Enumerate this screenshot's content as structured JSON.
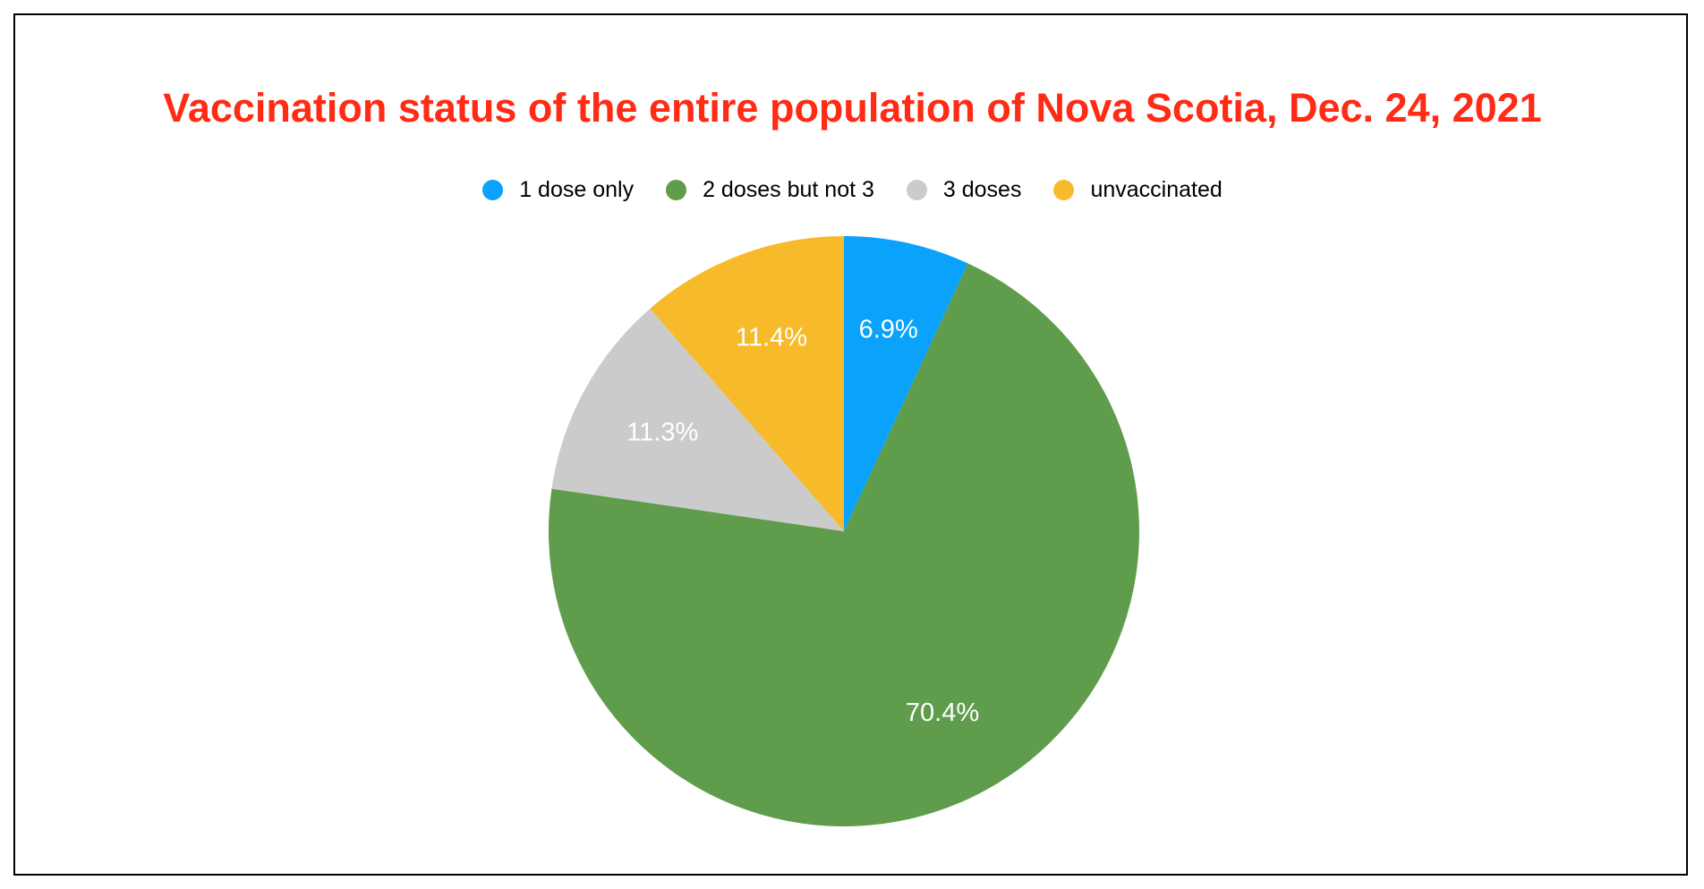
{
  "chart_data": {
    "type": "pie",
    "title": "Vaccination status of the entire population of Nova Scotia, Dec. 24, 2021",
    "legend_placement": "top",
    "labels": [
      "1 dose only",
      "2 doses but not 3",
      "3 doses",
      "unvaccinated"
    ],
    "values": [
      6.9,
      70.4,
      11.3,
      11.4
    ],
    "value_labels": [
      "6.9%",
      "70.4%",
      "11.3%",
      "11.4%"
    ],
    "colors": [
      "#0aa2fb",
      "#5f9c4b",
      "#cbcbcb",
      "#f7ba2a"
    ]
  }
}
